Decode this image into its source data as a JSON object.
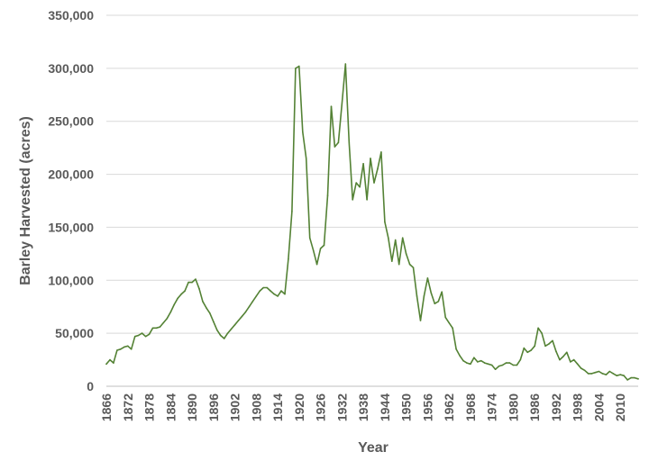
{
  "chart_data": {
    "type": "line",
    "title": "",
    "xlabel": "Year",
    "ylabel": "Barley Harvested (acres)",
    "xlim": [
      1866,
      2015
    ],
    "ylim": [
      0,
      350000
    ],
    "y_ticks": [
      0,
      50000,
      100000,
      150000,
      200000,
      250000,
      300000,
      350000
    ],
    "y_tick_labels": [
      "0",
      "50,000",
      "100,000",
      "150,000",
      "200,000",
      "250,000",
      "300,000",
      "350,000"
    ],
    "x_tick_labels": [
      "1866",
      "1872",
      "1878",
      "1884",
      "1890",
      "1896",
      "1902",
      "1908",
      "1914",
      "1920",
      "1926",
      "1932",
      "1938",
      "1944",
      "1950",
      "1956",
      "1962",
      "1968",
      "1974",
      "1980",
      "1986",
      "1992",
      "1998",
      "2004",
      "2010"
    ],
    "grid": "horizontal",
    "legend": "none",
    "series": [
      {
        "color": "#548235",
        "x": [
          1866,
          1867,
          1868,
          1869,
          1870,
          1871,
          1872,
          1873,
          1874,
          1875,
          1876,
          1877,
          1878,
          1879,
          1880,
          1881,
          1882,
          1883,
          1884,
          1885,
          1886,
          1887,
          1888,
          1889,
          1890,
          1891,
          1892,
          1893,
          1894,
          1895,
          1896,
          1897,
          1898,
          1899,
          1900,
          1901,
          1902,
          1903,
          1904,
          1905,
          1906,
          1907,
          1908,
          1909,
          1910,
          1911,
          1912,
          1913,
          1914,
          1915,
          1916,
          1917,
          1918,
          1919,
          1920,
          1921,
          1922,
          1923,
          1924,
          1925,
          1926,
          1927,
          1928,
          1929,
          1930,
          1931,
          1932,
          1933,
          1934,
          1935,
          1936,
          1937,
          1938,
          1939,
          1940,
          1941,
          1942,
          1943,
          1944,
          1945,
          1946,
          1947,
          1948,
          1949,
          1950,
          1951,
          1952,
          1953,
          1954,
          1955,
          1956,
          1957,
          1958,
          1959,
          1960,
          1961,
          1962,
          1963,
          1964,
          1965,
          1966,
          1967,
          1968,
          1969,
          1970,
          1971,
          1972,
          1973,
          1974,
          1975,
          1976,
          1977,
          1978,
          1979,
          1980,
          1981,
          1982,
          1983,
          1984,
          1985,
          1986,
          1987,
          1988,
          1989,
          1990,
          1991,
          1992,
          1993,
          1994,
          1995,
          1996,
          1997,
          1998,
          1999,
          2000,
          2001,
          2002,
          2003,
          2004,
          2005,
          2006,
          2007,
          2008,
          2009,
          2010,
          2011,
          2012,
          2013,
          2014,
          2015
        ],
        "values": [
          21000,
          25000,
          22000,
          34000,
          35000,
          37000,
          38000,
          35000,
          47000,
          48000,
          50000,
          47000,
          49000,
          55000,
          55000,
          56000,
          60000,
          64000,
          70000,
          77000,
          83000,
          87000,
          90000,
          98000,
          98000,
          101000,
          92000,
          80000,
          74000,
          69000,
          61000,
          53000,
          48000,
          45000,
          50000,
          54000,
          58000,
          62000,
          66000,
          70000,
          75000,
          80000,
          85000,
          90000,
          93000,
          93000,
          90000,
          87000,
          85000,
          90000,
          87000,
          120000,
          165000,
          300000,
          302000,
          240000,
          215000,
          140000,
          128000,
          115000,
          130000,
          133000,
          180000,
          264000,
          226000,
          230000,
          266000,
          304000,
          230000,
          176000,
          192000,
          188000,
          210000,
          176000,
          215000,
          192000,
          205000,
          221000,
          155000,
          140000,
          118000,
          138000,
          115000,
          140000,
          125000,
          115000,
          112000,
          85000,
          62000,
          85000,
          102000,
          88000,
          78000,
          80000,
          89000,
          65000,
          60000,
          55000,
          35000,
          29000,
          24000,
          22000,
          21000,
          27000,
          23000,
          24000,
          22000,
          21000,
          20000,
          16000,
          19000,
          20000,
          22000,
          22000,
          20000,
          20000,
          25000,
          36000,
          32000,
          34000,
          38000,
          55000,
          50000,
          38000,
          40000,
          43000,
          33000,
          25000,
          28000,
          32000,
          23000,
          25000,
          21000,
          17000,
          15000,
          12000,
          12000,
          13000,
          14000,
          12000,
          11000,
          14000,
          12000,
          10000,
          11000,
          10000,
          6000,
          8000,
          8000,
          7000
        ]
      }
    ]
  }
}
